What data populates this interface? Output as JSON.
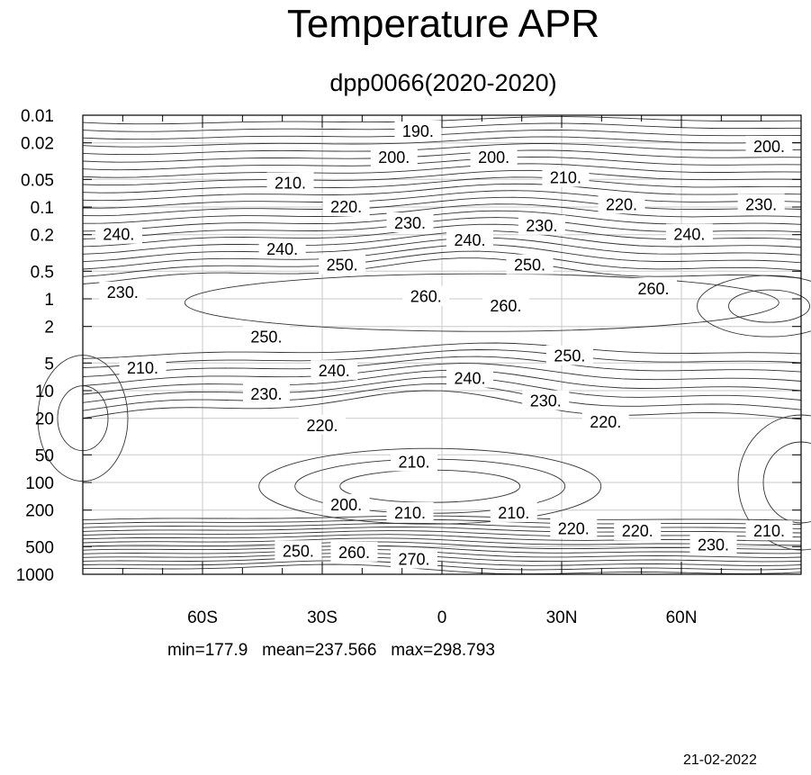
{
  "chart_data": {
    "type": "contour",
    "title": "Temperature APR",
    "subtitle": "dpp0066(2020-2020)",
    "x_ticks": [
      {
        "value": -60,
        "label": "60S"
      },
      {
        "value": -30,
        "label": "30S"
      },
      {
        "value": 0,
        "label": "0"
      },
      {
        "value": 30,
        "label": "30N"
      },
      {
        "value": 60,
        "label": "60N"
      }
    ],
    "xlim": [
      -90,
      90
    ],
    "y_scale": "log",
    "y_ticks": [
      {
        "value": 0.01,
        "label": "0.01"
      },
      {
        "value": 0.02,
        "label": "0.02"
      },
      {
        "value": 0.05,
        "label": "0.05"
      },
      {
        "value": 0.1,
        "label": "0.1"
      },
      {
        "value": 0.2,
        "label": "0.2"
      },
      {
        "value": 0.5,
        "label": "0.5"
      },
      {
        "value": 1,
        "label": "1"
      },
      {
        "value": 2,
        "label": "2"
      },
      {
        "value": 5,
        "label": "5"
      },
      {
        "value": 10,
        "label": "10"
      },
      {
        "value": 20,
        "label": "20"
      },
      {
        "value": 50,
        "label": "50"
      },
      {
        "value": 100,
        "label": "100"
      },
      {
        "value": 200,
        "label": "200"
      },
      {
        "value": 500,
        "label": "500"
      },
      {
        "value": 1000,
        "label": "1000"
      }
    ],
    "ylim": [
      0.01,
      1000
    ],
    "y_inverted": true,
    "contour_labels": [
      {
        "lat": -6,
        "p": 0.015,
        "label": "190."
      },
      {
        "lat": -12,
        "p": 0.029,
        "label": "200."
      },
      {
        "lat": 13,
        "p": 0.029,
        "label": "200."
      },
      {
        "lat": 82,
        "p": 0.022,
        "label": "200."
      },
      {
        "lat": -38,
        "p": 0.055,
        "label": "210."
      },
      {
        "lat": 31,
        "p": 0.048,
        "label": "210."
      },
      {
        "lat": -24,
        "p": 0.1,
        "label": "220."
      },
      {
        "lat": 45,
        "p": 0.094,
        "label": "220."
      },
      {
        "lat": 80,
        "p": 0.094,
        "label": "230."
      },
      {
        "lat": -8,
        "p": 0.15,
        "label": "230."
      },
      {
        "lat": 25,
        "p": 0.16,
        "label": "230."
      },
      {
        "lat": -81,
        "p": 0.2,
        "label": "240."
      },
      {
        "lat": -40,
        "p": 0.29,
        "label": "240."
      },
      {
        "lat": 7,
        "p": 0.23,
        "label": "240."
      },
      {
        "lat": 62,
        "p": 0.2,
        "label": "240."
      },
      {
        "lat": -25,
        "p": 0.43,
        "label": "250."
      },
      {
        "lat": 22,
        "p": 0.43,
        "label": "250."
      },
      {
        "lat": -80,
        "p": 0.85,
        "label": "230."
      },
      {
        "lat": -4,
        "p": 0.95,
        "label": "260."
      },
      {
        "lat": 16,
        "p": 1.2,
        "label": "260."
      },
      {
        "lat": 53,
        "p": 0.78,
        "label": "260."
      },
      {
        "lat": -44,
        "p": 2.6,
        "label": "250."
      },
      {
        "lat": 32,
        "p": 4.2,
        "label": "250."
      },
      {
        "lat": -75,
        "p": 5.7,
        "label": "210."
      },
      {
        "lat": -27,
        "p": 6.1,
        "label": "240."
      },
      {
        "lat": 7,
        "p": 7.4,
        "label": "240."
      },
      {
        "lat": -44,
        "p": 11,
        "label": "230."
      },
      {
        "lat": 26,
        "p": 13,
        "label": "230."
      },
      {
        "lat": -30,
        "p": 24,
        "label": "220."
      },
      {
        "lat": 41,
        "p": 22,
        "label": "220."
      },
      {
        "lat": -7,
        "p": 60,
        "label": "210."
      },
      {
        "lat": -24,
        "p": 175,
        "label": "200."
      },
      {
        "lat": -8,
        "p": 215,
        "label": "210."
      },
      {
        "lat": 18,
        "p": 215,
        "label": "210."
      },
      {
        "lat": 33,
        "p": 320,
        "label": "220."
      },
      {
        "lat": 49,
        "p": 340,
        "label": "220."
      },
      {
        "lat": 82,
        "p": 340,
        "label": "210."
      },
      {
        "lat": 68,
        "p": 480,
        "label": "230."
      },
      {
        "lat": -36,
        "p": 560,
        "label": "250."
      },
      {
        "lat": -22,
        "p": 580,
        "label": "260."
      },
      {
        "lat": -7,
        "p": 690,
        "label": "270."
      }
    ],
    "stats_text": "min=177.9   mean=237.566   max=298.793",
    "date": "21-02-2022"
  }
}
